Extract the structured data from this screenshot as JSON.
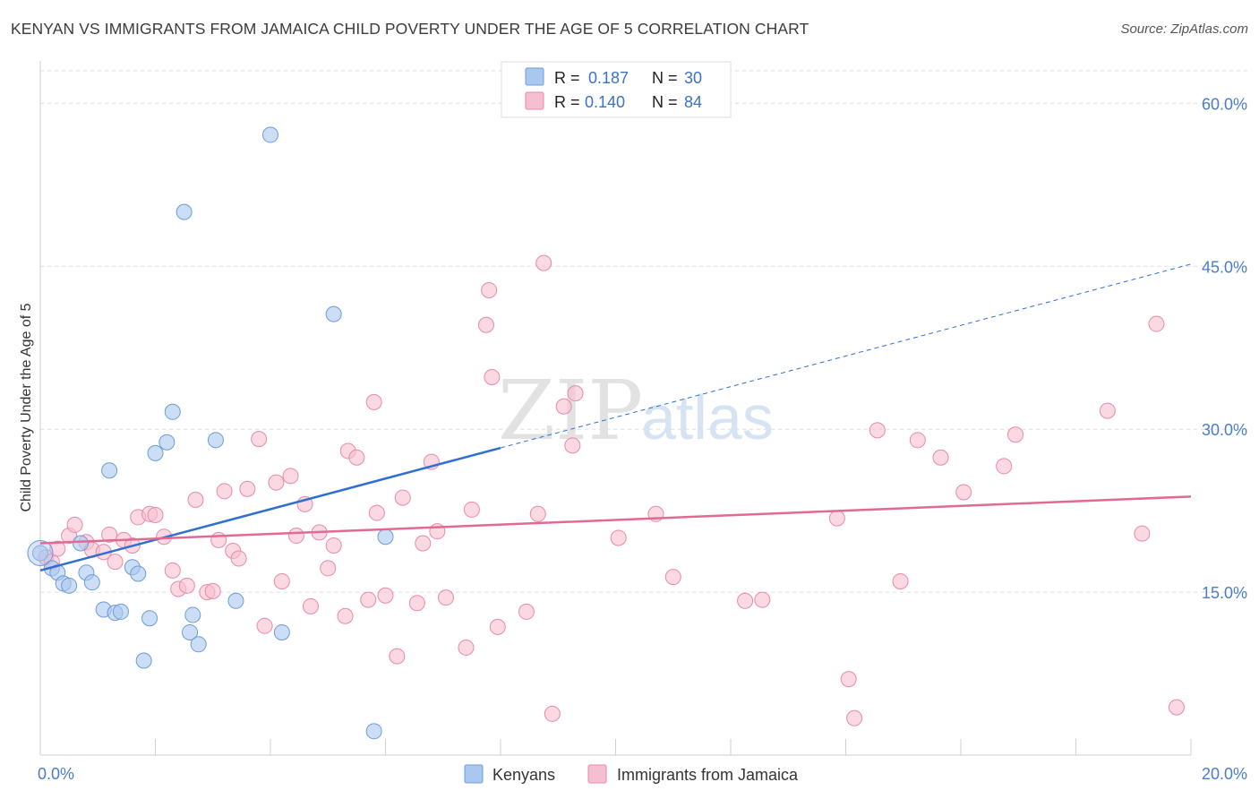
{
  "title": "KENYAN VS IMMIGRANTS FROM JAMAICA CHILD POVERTY UNDER THE AGE OF 5 CORRELATION CHART",
  "source": "Source: ZipAtlas.com",
  "watermark": {
    "zip": "ZIP",
    "atlas": "atlas"
  },
  "colors": {
    "kenyans_fill": "#aac8ef",
    "kenyans_stroke": "#6d9bd8",
    "kenyans_line": "#2f6fd0",
    "jamaica_fill": "#f6bfd1",
    "jamaica_stroke": "#e88aa8",
    "jamaica_line": "#e06a94",
    "grid": "#dedede",
    "tick_text": "#4a7cc7"
  },
  "legend": {
    "rows": [
      {
        "r_label": "R = ",
        "r_value": "0.187",
        "n_label": "N = ",
        "n_value": "30"
      },
      {
        "r_label": "R = ",
        "r_value": "0.140",
        "n_label": "N = ",
        "n_value": "84"
      }
    ]
  },
  "bottom_legend": {
    "kenyans": "Kenyans",
    "jamaica": "Immigrants from Jamaica"
  },
  "chart_data": {
    "type": "scatter",
    "title": "KENYAN VS IMMIGRANTS FROM JAMAICA CHILD POVERTY UNDER THE AGE OF 5 CORRELATION CHART",
    "xlabel": "",
    "ylabel": "Child Poverty Under the Age of 5",
    "xlim": [
      0,
      20
    ],
    "ylim": [
      0,
      63
    ],
    "x_tick_labels": [
      "0.0%",
      "20.0%"
    ],
    "y_ticks": [
      15,
      30,
      45,
      60
    ],
    "y_tick_labels": [
      "15.0%",
      "30.0%",
      "45.0%",
      "60.0%"
    ],
    "grid": true,
    "legend_position": "top-center",
    "series": [
      {
        "name": "Kenyans",
        "color": "#aac8ef",
        "points": [
          [
            0.0,
            18.6
          ],
          [
            0.2,
            17.2
          ],
          [
            0.3,
            16.8
          ],
          [
            0.4,
            15.8
          ],
          [
            0.5,
            15.6
          ],
          [
            0.7,
            19.5
          ],
          [
            0.8,
            16.8
          ],
          [
            0.9,
            15.9
          ],
          [
            1.1,
            13.4
          ],
          [
            1.3,
            13.1
          ],
          [
            1.4,
            13.2
          ],
          [
            1.2,
            26.2
          ],
          [
            1.6,
            17.3
          ],
          [
            1.7,
            16.7
          ],
          [
            1.8,
            8.7
          ],
          [
            1.9,
            12.6
          ],
          [
            2.0,
            27.8
          ],
          [
            2.2,
            28.8
          ],
          [
            2.3,
            31.6
          ],
          [
            2.5,
            50.0
          ],
          [
            2.6,
            11.3
          ],
          [
            2.65,
            12.9
          ],
          [
            2.75,
            10.2
          ],
          [
            3.05,
            29.0
          ],
          [
            3.4,
            14.2
          ],
          [
            4.0,
            57.1
          ],
          [
            4.2,
            11.3
          ],
          [
            5.1,
            40.6
          ],
          [
            5.8,
            2.2
          ],
          [
            6.0,
            20.1
          ]
        ],
        "trend": {
          "x": [
            0,
            20
          ],
          "y": [
            17.0,
            45.2
          ],
          "solid_until_x": 8.0
        }
      },
      {
        "name": "Immigrants from Jamaica",
        "color": "#f6bfd1",
        "points": [
          [
            0.1,
            18.2
          ],
          [
            0.2,
            17.8
          ],
          [
            0.3,
            19.0
          ],
          [
            0.5,
            20.2
          ],
          [
            0.6,
            21.2
          ],
          [
            0.8,
            19.6
          ],
          [
            0.9,
            18.9
          ],
          [
            1.1,
            18.7
          ],
          [
            1.2,
            20.3
          ],
          [
            1.3,
            17.8
          ],
          [
            1.45,
            19.8
          ],
          [
            1.6,
            19.3
          ],
          [
            1.7,
            21.9
          ],
          [
            1.9,
            22.2
          ],
          [
            2.0,
            22.1
          ],
          [
            2.15,
            20.1
          ],
          [
            2.3,
            17.0
          ],
          [
            2.4,
            15.3
          ],
          [
            2.55,
            15.6
          ],
          [
            2.7,
            23.5
          ],
          [
            2.9,
            15.0
          ],
          [
            3.0,
            15.1
          ],
          [
            3.1,
            19.8
          ],
          [
            3.2,
            24.3
          ],
          [
            3.35,
            18.8
          ],
          [
            3.45,
            18.1
          ],
          [
            3.6,
            24.5
          ],
          [
            3.8,
            29.1
          ],
          [
            3.9,
            11.9
          ],
          [
            4.1,
            25.1
          ],
          [
            4.2,
            16.0
          ],
          [
            4.35,
            25.7
          ],
          [
            4.45,
            20.2
          ],
          [
            4.6,
            23.1
          ],
          [
            4.7,
            13.7
          ],
          [
            4.85,
            20.5
          ],
          [
            5.0,
            17.2
          ],
          [
            5.1,
            19.3
          ],
          [
            5.3,
            12.8
          ],
          [
            5.35,
            28.0
          ],
          [
            5.5,
            27.4
          ],
          [
            5.7,
            14.3
          ],
          [
            5.8,
            32.5
          ],
          [
            5.85,
            22.3
          ],
          [
            6.0,
            14.7
          ],
          [
            6.2,
            9.1
          ],
          [
            6.3,
            23.7
          ],
          [
            6.55,
            14.0
          ],
          [
            6.65,
            19.5
          ],
          [
            6.8,
            27.0
          ],
          [
            6.9,
            20.6
          ],
          [
            7.05,
            14.5
          ],
          [
            7.4,
            9.9
          ],
          [
            7.5,
            22.6
          ],
          [
            7.75,
            39.6
          ],
          [
            7.8,
            42.8
          ],
          [
            7.85,
            34.8
          ],
          [
            7.95,
            11.8
          ],
          [
            8.45,
            13.2
          ],
          [
            8.65,
            22.2
          ],
          [
            8.75,
            45.3
          ],
          [
            8.9,
            3.8
          ],
          [
            9.1,
            32.1
          ],
          [
            9.25,
            28.5
          ],
          [
            9.3,
            33.3
          ],
          [
            10.05,
            20.0
          ],
          [
            10.7,
            22.2
          ],
          [
            11.0,
            16.4
          ],
          [
            12.25,
            14.2
          ],
          [
            12.55,
            14.3
          ],
          [
            13.85,
            21.8
          ],
          [
            14.05,
            7.0
          ],
          [
            14.15,
            3.4
          ],
          [
            14.55,
            29.9
          ],
          [
            14.95,
            16.0
          ],
          [
            15.25,
            29.0
          ],
          [
            15.65,
            27.4
          ],
          [
            16.05,
            24.2
          ],
          [
            16.75,
            26.6
          ],
          [
            16.95,
            29.5
          ],
          [
            18.55,
            31.7
          ],
          [
            19.15,
            20.4
          ],
          [
            19.4,
            39.7
          ],
          [
            19.75,
            4.4
          ]
        ],
        "trend": {
          "x": [
            0,
            20
          ],
          "y": [
            19.5,
            23.8
          ],
          "solid_until_x": 20
        }
      }
    ]
  }
}
